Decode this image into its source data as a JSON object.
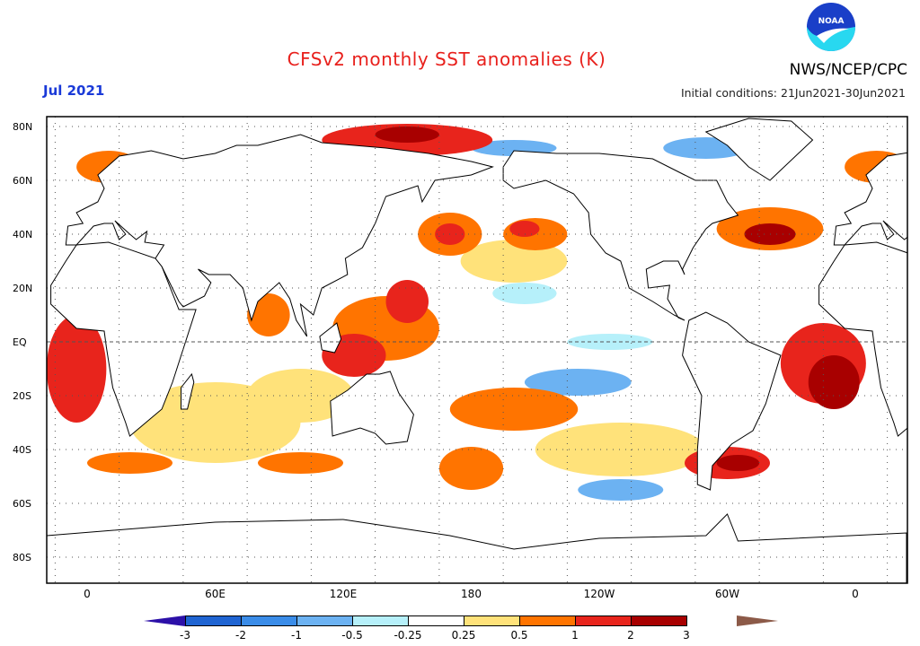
{
  "header": {
    "title": "CFSv2 monthly SST anomalies (K)",
    "valid_month": "Jul 2021",
    "initial_conditions": "Initial conditions: 21Jun2021-30Jun2021",
    "agency": "NWS/NCEP/CPC",
    "logo_text": "NOAA"
  },
  "chart_data": {
    "type": "heatmap",
    "title": "CFSv2 monthly SST anomalies (K)",
    "variable_units": "K",
    "lat_ticks": [
      "80N",
      "60N",
      "40N",
      "20N",
      "EQ",
      "20S",
      "40S",
      "60S",
      "80S"
    ],
    "lat_values": [
      80,
      60,
      40,
      20,
      0,
      -20,
      -40,
      -60,
      -80
    ],
    "lon_ticks": [
      "0",
      "60E",
      "120E",
      "180",
      "120W",
      "60W",
      "0"
    ],
    "lon_values": [
      0,
      60,
      120,
      180,
      240,
      300,
      360
    ],
    "grid": "dotted",
    "colorbar": {
      "tick_labels": [
        "-3",
        "-2",
        "-1",
        "-0.5",
        "-0.25",
        "0.25",
        "0.5",
        "1",
        "2",
        "3"
      ],
      "levels": [
        -3,
        -2,
        -1,
        -0.5,
        -0.25,
        0.25,
        0.5,
        1,
        2,
        3
      ],
      "colors": [
        "#2c10a8",
        "#1f64d2",
        "#3a8ce8",
        "#6cb2f2",
        "#b6f0fa",
        "#ffffff",
        "#ffe27a",
        "#ff7400",
        "#e8241c",
        "#a80000",
        "#8c5a48"
      ],
      "placement": "bottom"
    },
    "anomaly_regions": [
      {
        "lon": 60,
        "lat": -30,
        "rlon": 40,
        "rlat": 15,
        "value": 0.3
      },
      {
        "lon": 250,
        "lat": -40,
        "rlon": 40,
        "rlat": 10,
        "value": 0.3
      },
      {
        "lon": 200,
        "lat": 30,
        "rlon": 25,
        "rlat": 8,
        "value": 0.3
      },
      {
        "lon": 100,
        "lat": -20,
        "rlon": 25,
        "rlat": 10,
        "value": 0.3
      },
      {
        "lon": 230,
        "lat": -15,
        "rlon": 25,
        "rlat": 5,
        "value": -0.6
      },
      {
        "lon": 245,
        "lat": 0,
        "rlon": 20,
        "rlat": 3,
        "value": -0.4
      },
      {
        "lon": 205,
        "lat": 18,
        "rlon": 15,
        "rlat": 4,
        "value": -0.4
      },
      {
        "lon": 250,
        "lat": -55,
        "rlon": 20,
        "rlat": 4,
        "value": -0.6
      },
      {
        "lon": 200,
        "lat": 72,
        "rlon": 20,
        "rlat": 3,
        "value": -0.6
      },
      {
        "lon": 290,
        "lat": 72,
        "rlon": 20,
        "rlat": 4,
        "value": -0.6
      },
      {
        "lon": 320,
        "lat": 42,
        "rlon": 25,
        "rlat": 8,
        "value": 0.8
      },
      {
        "lon": 320,
        "lat": 40,
        "rlon": 12,
        "rlat": 4,
        "value": 2.5
      },
      {
        "lon": -5,
        "lat": -10,
        "rlon": 14,
        "rlat": 20,
        "value": 1.5
      },
      {
        "lon": 345,
        "lat": -8,
        "rlon": 20,
        "rlat": 15,
        "value": 1.5
      },
      {
        "lon": 350,
        "lat": -15,
        "rlon": 12,
        "rlat": 10,
        "value": 2.5
      },
      {
        "lon": 85,
        "lat": 10,
        "rlon": 10,
        "rlat": 8,
        "value": 0.8
      },
      {
        "lon": 140,
        "lat": 5,
        "rlon": 25,
        "rlat": 12,
        "value": 0.8
      },
      {
        "lon": 125,
        "lat": -5,
        "rlon": 15,
        "rlat": 8,
        "value": 1.5
      },
      {
        "lon": 150,
        "lat": 15,
        "rlon": 10,
        "rlat": 8,
        "value": 1.5
      },
      {
        "lon": 170,
        "lat": 40,
        "rlon": 15,
        "rlat": 8,
        "value": 0.8
      },
      {
        "lon": 170,
        "lat": 40,
        "rlon": 7,
        "rlat": 4,
        "value": 1.5
      },
      {
        "lon": 210,
        "lat": 40,
        "rlon": 15,
        "rlat": 6,
        "value": 0.8
      },
      {
        "lon": 205,
        "lat": 42,
        "rlon": 7,
        "rlat": 3,
        "value": 1.5
      },
      {
        "lon": 200,
        "lat": -25,
        "rlon": 30,
        "rlat": 8,
        "value": 0.8
      },
      {
        "lon": 180,
        "lat": -47,
        "rlon": 15,
        "rlat": 8,
        "value": 0.8
      },
      {
        "lon": 300,
        "lat": -45,
        "rlon": 20,
        "rlat": 6,
        "value": 1.5
      },
      {
        "lon": 305,
        "lat": -45,
        "rlon": 10,
        "rlat": 3,
        "value": 2.5
      },
      {
        "lon": 20,
        "lat": -45,
        "rlon": 20,
        "rlat": 4,
        "value": 0.8
      },
      {
        "lon": 100,
        "lat": -45,
        "rlon": 20,
        "rlat": 4,
        "value": 0.8
      },
      {
        "lon": 150,
        "lat": 75,
        "rlon": 40,
        "rlat": 6,
        "value": 1.5
      },
      {
        "lon": 150,
        "lat": 77,
        "rlon": 15,
        "rlat": 3,
        "value": 2.5
      },
      {
        "lon": 10,
        "lat": 65,
        "rlon": 15,
        "rlat": 6,
        "value": 0.8
      },
      {
        "lon": 370,
        "lat": 65,
        "rlon": 15,
        "rlat": 6,
        "value": 0.8
      }
    ]
  }
}
